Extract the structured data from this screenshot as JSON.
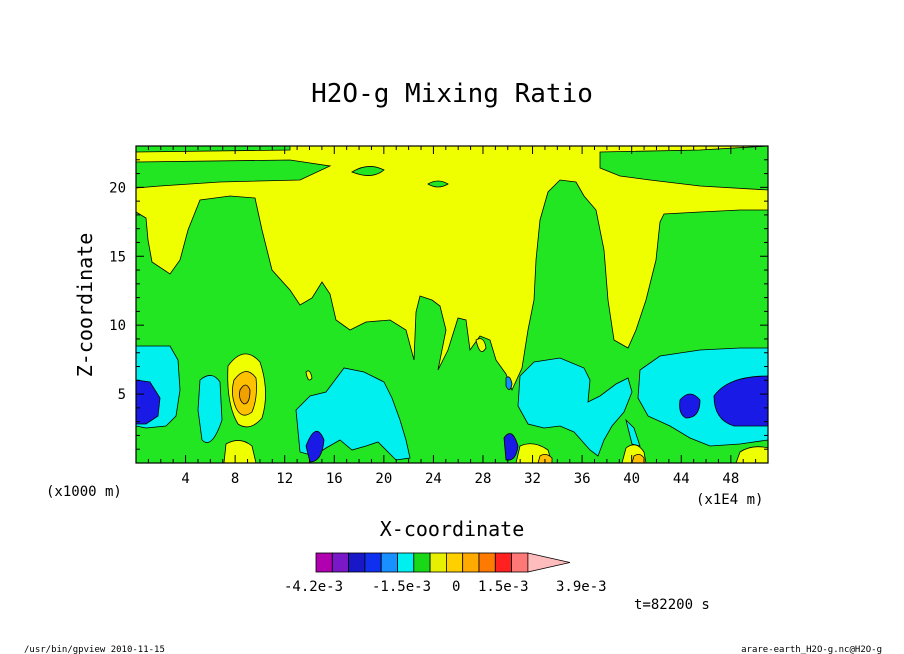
{
  "chart_data": {
    "type": "heatmap",
    "title": "H2O-g Mixing Ratio",
    "xlabel": "X-coordinate",
    "ylabel": "Z-coordinate",
    "x_unit": "(x1E4 m)",
    "y_unit": "(x1000 m)",
    "xlim": [
      0,
      51
    ],
    "ylim": [
      0,
      23
    ],
    "x_ticks": [
      "4",
      "8",
      "12",
      "16",
      "20",
      "24",
      "28",
      "32",
      "36",
      "40",
      "44",
      "48"
    ],
    "y_ticks": [
      "5",
      "10",
      "15",
      "20"
    ],
    "time_label": "t=82200 s",
    "colorbar": {
      "labels": [
        "-4.2e-3",
        "-1.5e-3",
        "0",
        "1.5e-3",
        "3.9e-3"
      ],
      "colors": [
        "#b000b0",
        "#7a18c8",
        "#1818c8",
        "#1030f0",
        "#1890ff",
        "#00f0f0",
        "#18d818",
        "#e6f000",
        "#ffd000",
        "#ffaa00",
        "#ff7a00",
        "#ff2020",
        "#ff7878",
        "#ffbcbc"
      ]
    },
    "region_colors": {
      "yellow": "#f0ff00",
      "green": "#22e622",
      "cyan": "#00f0f0",
      "blue": "#1a1ae6",
      "lightblue": "#1090ff",
      "orange": "#ffc000",
      "darkorange": "#f0a000"
    }
  },
  "footer": {
    "left": "/usr/bin/gpview   2010-11-15",
    "right": "arare-earth_H2O-g.nc@H2O-g"
  }
}
